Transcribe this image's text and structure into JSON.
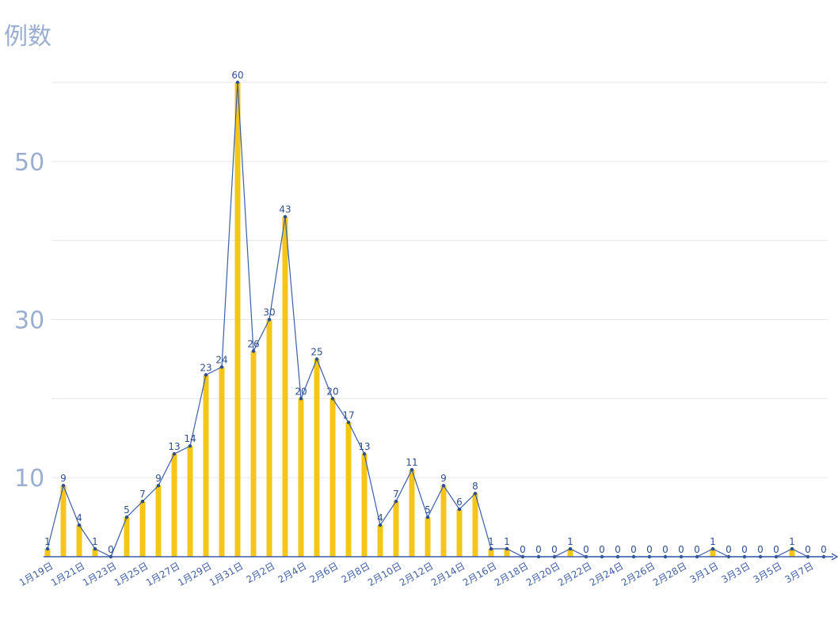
{
  "chart_data": {
    "type": "bar",
    "overlay_line": true,
    "ylabel": "例数",
    "ylim": [
      0,
      60
    ],
    "yticks": [
      10,
      30,
      50
    ],
    "grid_values": [
      10,
      20,
      30,
      40,
      50,
      60
    ],
    "grid": true,
    "categories": [
      "1月19日",
      "1月20日",
      "1月21日",
      "1月22日",
      "1月23日",
      "1月24日",
      "1月25日",
      "1月26日",
      "1月27日",
      "1月28日",
      "1月29日",
      "1月30日",
      "1月31日",
      "2月1日",
      "2月2日",
      "2月3日",
      "2月4日",
      "2月5日",
      "2月6日",
      "2月7日",
      "2月8日",
      "2月9日",
      "2月10日",
      "2月11日",
      "2月12日",
      "2月13日",
      "2月14日",
      "2月15日",
      "2月16日",
      "2月17日",
      "2月18日",
      "2月19日",
      "2月20日",
      "2月21日",
      "2月22日",
      "2月23日",
      "2月24日",
      "2月25日",
      "2月26日",
      "2月27日",
      "2月28日",
      "2月29日",
      "3月1日",
      "3月2日",
      "3月3日",
      "3月4日",
      "3月5日",
      "3月6日",
      "3月7日",
      "3月8日"
    ],
    "xtick_labels": [
      "1月19日",
      "1月21日",
      "1月23日",
      "1月25日",
      "1月27日",
      "1月29日",
      "1月31日",
      "2月2日",
      "2月4日",
      "2月6日",
      "2月8日",
      "2月10日",
      "2月12日",
      "2月14日",
      "2月16日",
      "2月18日",
      "2月20日",
      "2月22日",
      "2月24日",
      "2月26日",
      "2月28日",
      "3月1日",
      "3月3日",
      "3月5日",
      "3月7日"
    ],
    "values": [
      1,
      9,
      4,
      1,
      0,
      5,
      7,
      9,
      13,
      14,
      23,
      24,
      60,
      26,
      30,
      43,
      20,
      25,
      20,
      17,
      13,
      4,
      7,
      11,
      5,
      9,
      6,
      8,
      1,
      1,
      0,
      0,
      0,
      1,
      0,
      0,
      0,
      0,
      0,
      0,
      0,
      0,
      1,
      0,
      0,
      0,
      0,
      1,
      0,
      0
    ],
    "colors": {
      "bar": "#f5c518",
      "line": "#3a5ea8",
      "point": "#2e4f8f",
      "axis": "#3a5ea8",
      "label": "#2e4f8f",
      "ytick": "#9aaed2"
    }
  }
}
